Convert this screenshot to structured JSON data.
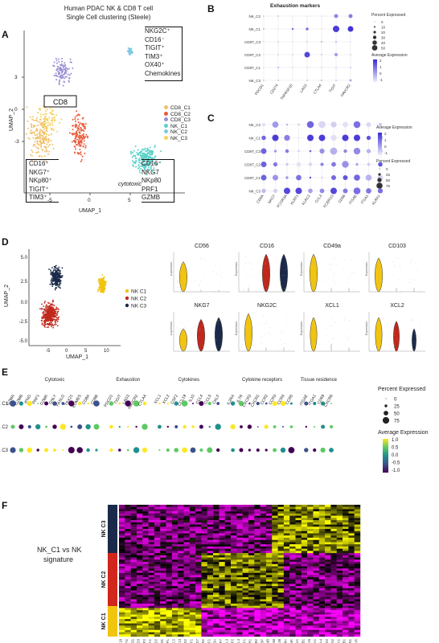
{
  "figure": {
    "panel_labels": [
      "A",
      "B",
      "C",
      "D",
      "E",
      "F"
    ]
  },
  "panel_a": {
    "title_line1": "Human PDAC NK & CD8 T cell",
    "title_line2": "Single Cell clustering  (Steele)",
    "xlabel": "UMAP_1",
    "ylabel": "UMAP_2",
    "x_ticks": [
      "-5",
      "0",
      "5"
    ],
    "y_ticks": [
      "3",
      "0",
      "-3"
    ],
    "cd8_label": "CD8",
    "cytotoxic_label": "cytotoxic",
    "legend": [
      {
        "name": "CD8_C1",
        "color": "#f0c16b"
      },
      {
        "name": "CD8_C2",
        "color": "#e85a3a"
      },
      {
        "name": "CD8_C3",
        "color": "#9b8fd6"
      },
      {
        "name": "NK_C1",
        "color": "#57d1c9"
      },
      {
        "name": "NK_C2",
        "color": "#7ec8e3"
      },
      {
        "name": "NK_C3",
        "color": "#f6d255"
      }
    ],
    "box_top_right": [
      "NKG2C⁺",
      "CD16⁻",
      "TIGIT⁺",
      "TIM3⁺",
      "OX40⁺",
      "Chemokines"
    ],
    "box_bottom_left": [
      "CD16⁺",
      "NKG7⁺",
      "NKp80⁺",
      "TIGIT⁺",
      "TIM3⁺"
    ],
    "box_bottom_right": [
      "CD16⁻",
      "NKG7",
      "NKp80",
      "PRF1",
      "GZMB"
    ]
  },
  "panel_b": {
    "title": "Exhaustion markers",
    "rows": [
      "NK_C2",
      "NK_C1",
      "CD8T_C3",
      "CD8T_C2",
      "CD8T_C1",
      "NK_C3"
    ],
    "genes": [
      "PDCD1",
      "CD274",
      "TNFRSF18",
      "LAG3",
      "CTLA4",
      "TIGIT",
      "HAVCR2"
    ],
    "legend_size_title": "Percent Expressed",
    "legend_sizes": [
      "0",
      "10",
      "20",
      "30",
      "40",
      "50"
    ],
    "legend_color_title": "Average Expression",
    "legend_color_ticks": [
      "2",
      "1",
      "0",
      "-1"
    ]
  },
  "panel_c": {
    "rows": [
      "NK_C2",
      "NK_C1",
      "CD8T_C3",
      "CD8T_C2",
      "CD8T_C1",
      "NK_C3"
    ],
    "genes": [
      "CD8A",
      "NKG7",
      "FCGR3A",
      "KLRF1",
      "KLRC2",
      "CCL3",
      "FCER1G",
      "CD96",
      "ITGAE",
      "ITGA1",
      "KLRK1"
    ],
    "legend_color_title": "Average Expression",
    "legend_color_ticks": [
      "2",
      "1",
      "0",
      "-1"
    ],
    "legend_size_title": "Percent Expressed",
    "legend_sizes": [
      "0",
      "25",
      "50",
      "75"
    ]
  },
  "panel_d": {
    "xlabel": "UMAP_1",
    "ylabel": "UMAP_2",
    "x_ticks": [
      "-5",
      "0",
      "5",
      "10"
    ],
    "y_ticks": [
      "5.0",
      "2.5",
      "0.0",
      "-2.5",
      "-5.0"
    ],
    "legend": [
      {
        "name": "NK C1",
        "color": "#f1c40f"
      },
      {
        "name": "NK C2",
        "color": "#c0281c"
      },
      {
        "name": "NK C3",
        "color": "#1b2a4a"
      }
    ],
    "violins": [
      {
        "title": "CD56"
      },
      {
        "title": "CD16"
      },
      {
        "title": "CD49a"
      },
      {
        "title": "CD103"
      },
      {
        "title": "NKG7"
      },
      {
        "title": "NKG2C"
      },
      {
        "title": "XCL1"
      },
      {
        "title": "XCL2"
      }
    ],
    "violin_ylabel": "Expression"
  },
  "panel_e": {
    "groups": [
      {
        "name": "Cytotoxic",
        "genes": [
          "GZMA",
          "GZMB",
          "IFNG",
          "PRF1",
          "GZMK",
          "GNLY",
          "FASLG",
          "TBX21",
          "EOMES",
          "CD8A",
          "CD8B"
        ]
      },
      {
        "name": "Exhaustion",
        "genes": [
          "PDCD1",
          "TIGIT",
          "LAG3",
          "HAVCR2",
          "CTLA4"
        ]
      },
      {
        "name": "Cytokines",
        "genes": [
          "XCL1",
          "XCL2",
          "CSF2",
          "CCL19",
          "IL10",
          "CCL4",
          "CCL5",
          "CKLF"
        ]
      },
      {
        "name": "Cytokine receptors",
        "genes": [
          "IL2RA",
          "IL7R",
          "CXCR3",
          "CXCR1",
          "CCR2",
          "CCR3",
          "CCR4",
          "CCR5"
        ]
      },
      {
        "name": "Tissue residence",
        "genes": [
          "ITGAE",
          "ITGA1",
          "CD69",
          "CXCR6"
        ]
      }
    ],
    "rows": [
      "NK C1",
      "NK C2",
      "NK C3"
    ],
    "legend_size_title": "Percent Expressed",
    "legend_sizes": [
      "0",
      "25",
      "50",
      "75"
    ],
    "legend_color_title": "Average Expression",
    "legend_color_ticks": [
      "1.0",
      "0.5",
      "0.0",
      "-0.5",
      "-1.0"
    ]
  },
  "panel_f": {
    "signature_label_line1": "NK_C1 vs NK",
    "signature_label_line2": "signature",
    "row_groups": [
      {
        "name": "NK C3",
        "color": "#1b2a4a"
      },
      {
        "name": "NK C2",
        "color": "#d0261c"
      },
      {
        "name": "NK C1",
        "color": "#f1c40f"
      }
    ],
    "genes": [
      "TNFRSF18",
      "CAPG",
      "CD3G",
      "ID3",
      "NDFIP2",
      "ITGA1",
      "CCND2",
      "KRT81",
      "PHYKPL",
      "KLRC2",
      "S100A13",
      "TMIGD2",
      "CSF1",
      "CD7",
      "SPON2",
      "KLRF1",
      "FCGR3A",
      "IGFBP7",
      "CCL3",
      "FGFBP2",
      "CCL4",
      "PRF1",
      "CX3CR1",
      "ITGB2",
      "MBP",
      "GZMB",
      "CD160",
      "CD38",
      "CD8A",
      "GZMK",
      "KLRG1",
      "HLA-DPB1",
      "RPS26",
      "ANXA1",
      "S100A4",
      "CD2",
      "CD52",
      "HLA-DPA1",
      "HLA-DRB1",
      "STMN1",
      "LYAR"
    ]
  }
}
